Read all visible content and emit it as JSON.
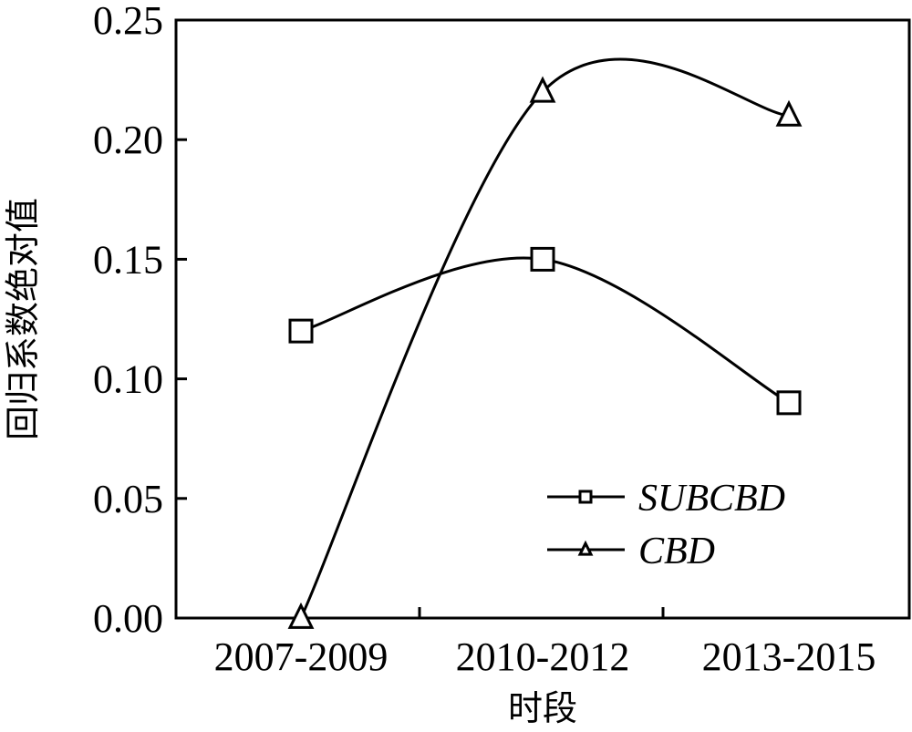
{
  "chart_data": {
    "type": "line",
    "categories": [
      "2007-2009",
      "2010-2012",
      "2013-2015"
    ],
    "series": [
      {
        "name": "SUBCBD",
        "values": [
          0.12,
          0.15,
          0.09
        ],
        "marker": "square"
      },
      {
        "name": "CBD",
        "values": [
          0.0,
          0.22,
          0.21
        ],
        "marker": "triangle"
      }
    ],
    "title": "",
    "xlabel": "时段",
    "ylabel": "回归系数绝对值",
    "ylim": [
      0,
      0.25
    ],
    "yticks": [
      "0.00",
      "0.05",
      "0.10",
      "0.15",
      "0.20",
      "0.25"
    ],
    "grid": false,
    "legend_position": "bottom-right",
    "line_color": "#000000",
    "smooth": true
  }
}
